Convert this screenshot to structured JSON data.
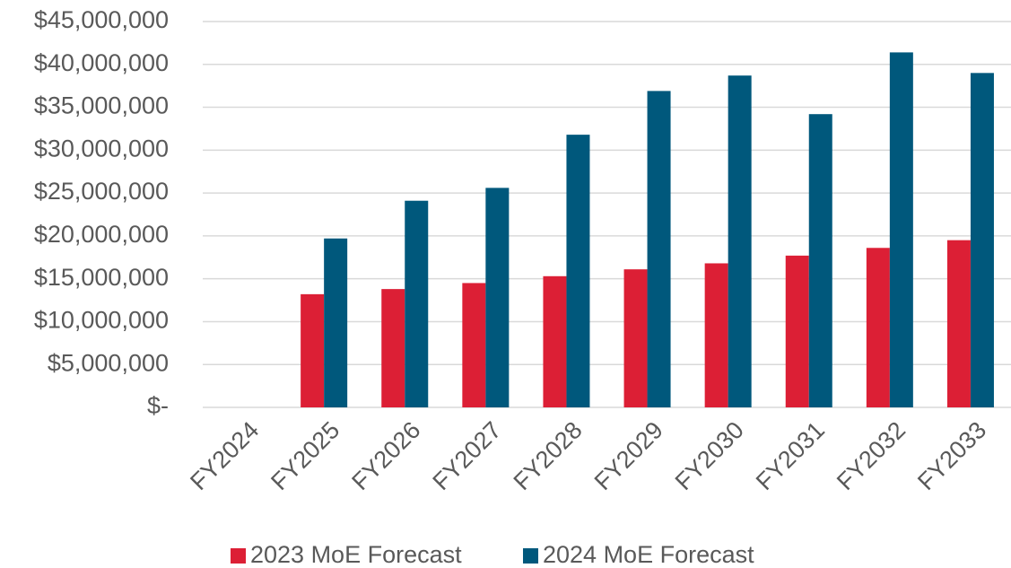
{
  "chart_data": {
    "type": "bar",
    "categories": [
      "FY2024",
      "FY2025",
      "FY2026",
      "FY2027",
      "FY2028",
      "FY2029",
      "FY2030",
      "FY2031",
      "FY2032",
      "FY2033"
    ],
    "series": [
      {
        "name": "2023 MoE Forecast",
        "color": "#dc1f35",
        "values": [
          null,
          13200000,
          13800000,
          14500000,
          15300000,
          16100000,
          16800000,
          17700000,
          18600000,
          19500000
        ]
      },
      {
        "name": "2024 MoE Forecast",
        "color": "#00587c",
        "values": [
          null,
          19700000,
          24100000,
          25600000,
          31800000,
          36900000,
          38700000,
          34200000,
          41400000,
          39000000
        ]
      }
    ],
    "ylim": [
      0,
      45000000
    ],
    "yticks": [
      {
        "value": 0,
        "label": "$-"
      },
      {
        "value": 5000000,
        "label": "$5,000,000"
      },
      {
        "value": 10000000,
        "label": "$10,000,000"
      },
      {
        "value": 15000000,
        "label": "$15,000,000"
      },
      {
        "value": 20000000,
        "label": "$20,000,000"
      },
      {
        "value": 25000000,
        "label": "$25,000,000"
      },
      {
        "value": 30000000,
        "label": "$30,000,000"
      },
      {
        "value": 35000000,
        "label": "$35,000,000"
      },
      {
        "value": 40000000,
        "label": "$40,000,000"
      },
      {
        "value": 45000000,
        "label": "$45,000,000"
      }
    ],
    "grid": true,
    "legend": "bottom"
  }
}
